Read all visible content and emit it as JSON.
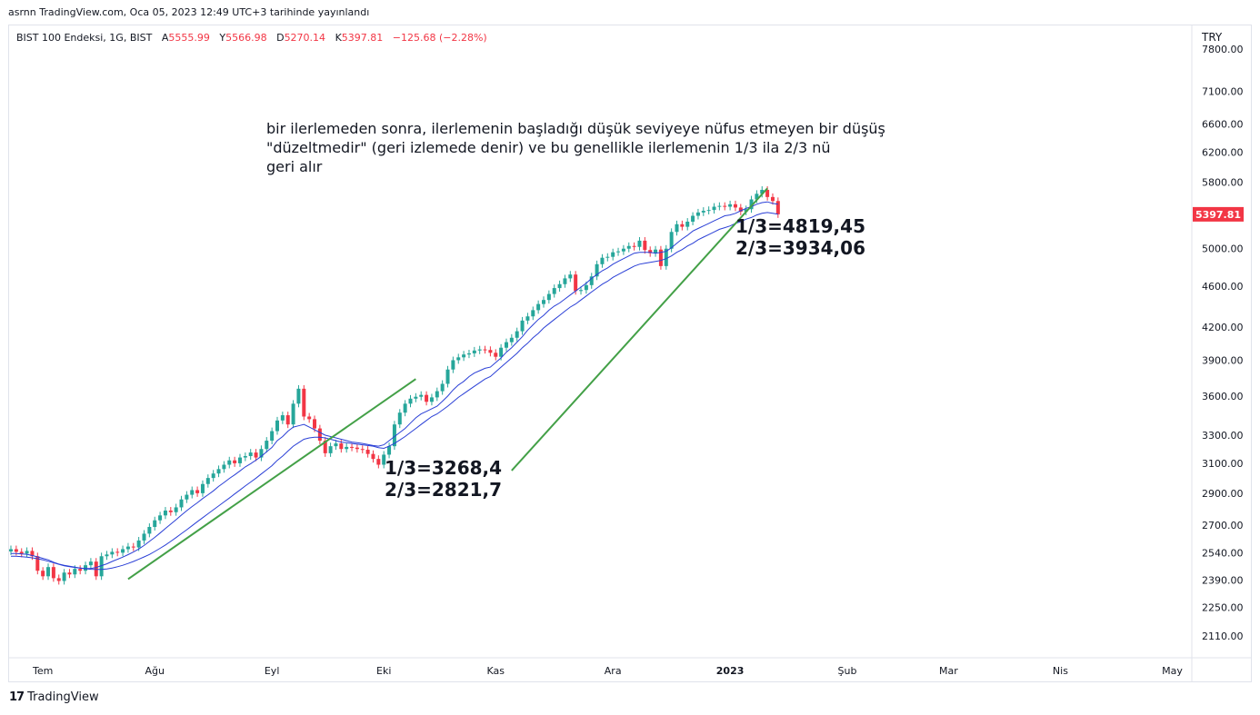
{
  "publish_line": "asrnn TradingView.com, Oca 05, 2023 12:49 UTC+3 tarihinde yayınlandı",
  "legend": {
    "symbol": "BIST 100 Endeksi, 1G, BIST",
    "open_label": "A",
    "open": "5555.99",
    "high_label": "Y",
    "high": "5566.98",
    "low_label": "D",
    "low": "5270.14",
    "close_label": "K",
    "close": "5397.81",
    "change": "−125.68 (−2.28%)"
  },
  "currency": "TRY",
  "footer_brand": "TradingView",
  "colors": {
    "up": "#26a69a",
    "down": "#f23645",
    "ma": "#2a3fd6",
    "trend": "#43a047",
    "price_tag": "#f23645"
  },
  "chart_data": {
    "type": "candlestick",
    "title": "BIST 100 Endeksi, 1G, BIST",
    "y_scale": "log",
    "ylim": [
      2050,
      7800
    ],
    "y_ticks": [
      "7800.00",
      "7100.00",
      "6600.00",
      "6200.00",
      "5800.00",
      "5000.00",
      "4600.00",
      "4200.00",
      "3900.00",
      "3600.00",
      "3300.00",
      "3100.00",
      "2900.00",
      "2700.00",
      "2540.00",
      "2390.00",
      "2250.00",
      "2110.00"
    ],
    "x_ticks": [
      {
        "label": "Tem",
        "i": 6
      },
      {
        "label": "Ağu",
        "i": 27
      },
      {
        "label": "Eyl",
        "i": 49
      },
      {
        "label": "Eki",
        "i": 70
      },
      {
        "label": "Kas",
        "i": 91
      },
      {
        "label": "Ara",
        "i": 113
      },
      {
        "label": "2023",
        "i": 135
      },
      {
        "label": "Şub",
        "i": 157
      },
      {
        "label": "Mar",
        "i": 176
      },
      {
        "label": "Nis",
        "i": 197
      },
      {
        "label": "May",
        "i": 218
      }
    ],
    "last_price": "5397.81",
    "closes": [
      2560,
      2545,
      2535,
      2550,
      2520,
      2440,
      2410,
      2460,
      2400,
      2385,
      2430,
      2420,
      2450,
      2440,
      2470,
      2490,
      2410,
      2520,
      2530,
      2545,
      2540,
      2560,
      2575,
      2570,
      2610,
      2650,
      2690,
      2730,
      2760,
      2790,
      2780,
      2810,
      2860,
      2890,
      2920,
      2900,
      2960,
      3000,
      3030,
      3060,
      3090,
      3120,
      3100,
      3140,
      3150,
      3175,
      3140,
      3200,
      3260,
      3330,
      3410,
      3450,
      3380,
      3540,
      3660,
      3440,
      3420,
      3350,
      3260,
      3170,
      3220,
      3240,
      3200,
      3215,
      3210,
      3200,
      3195,
      3165,
      3130,
      3090,
      3160,
      3220,
      3380,
      3470,
      3540,
      3580,
      3595,
      3610,
      3555,
      3590,
      3640,
      3700,
      3820,
      3900,
      3925,
      3950,
      3960,
      3985,
      3995,
      3990,
      3965,
      3930,
      4010,
      4060,
      4100,
      4160,
      4260,
      4300,
      4360,
      4420,
      4460,
      4520,
      4580,
      4620,
      4680,
      4720,
      4550,
      4560,
      4610,
      4700,
      4830,
      4900,
      4910,
      4960,
      4970,
      5000,
      5030,
      5020,
      5090,
      4985,
      4950,
      4990,
      4810,
      5000,
      5190,
      5280,
      5250,
      5310,
      5380,
      5420,
      5440,
      5450,
      5490,
      5500,
      5490,
      5520,
      5480,
      5430,
      5460,
      5580,
      5650,
      5700,
      5610,
      5560,
      5398
    ],
    "ma_fast": [
      2535,
      2535,
      2533,
      2531,
      2524,
      2517,
      2508,
      2500,
      2487,
      2477,
      2470,
      2465,
      2460,
      2455,
      2452,
      2452,
      2458,
      2468,
      2478,
      2491,
      2503,
      2515,
      2529,
      2544,
      2561,
      2581,
      2605,
      2628,
      2654,
      2680,
      2707,
      2734,
      2762,
      2789,
      2815,
      2839,
      2866,
      2890,
      2915,
      2944,
      2970,
      2997,
      3021,
      3048,
      3075,
      3097,
      3122,
      3148,
      3180,
      3211,
      3260,
      3290,
      3330,
      3360,
      3370,
      3380,
      3360,
      3340,
      3320,
      3300,
      3290,
      3280,
      3270,
      3260,
      3250,
      3245,
      3240,
      3233,
      3225,
      3220,
      3230,
      3260,
      3290,
      3320,
      3350,
      3390,
      3430,
      3460,
      3480,
      3500,
      3520,
      3560,
      3600,
      3650,
      3690,
      3720,
      3760,
      3790,
      3810,
      3830,
      3840,
      3880,
      3920,
      3970,
      4010,
      4060,
      4110,
      4170,
      4220,
      4270,
      4310,
      4360,
      4400,
      4430,
      4470,
      4510,
      4550,
      4590,
      4630,
      4680,
      4720,
      4760,
      4790,
      4830,
      4860,
      4890,
      4920,
      4950,
      4960,
      4960,
      4960,
      4950,
      4960,
      4970,
      5010,
      5060,
      5110,
      5150,
      5200,
      5230,
      5260,
      5290,
      5320,
      5350,
      5380,
      5390,
      5410,
      5440,
      5470,
      5490,
      5520,
      5540,
      5550,
      5530,
      5520
    ],
    "ma_slow": [
      2520,
      2520,
      2518,
      2515,
      2511,
      2506,
      2500,
      2492,
      2484,
      2475,
      2467,
      2462,
      2458,
      2455,
      2451,
      2448,
      2447,
      2447,
      2450,
      2455,
      2462,
      2470,
      2480,
      2491,
      2503,
      2516,
      2530,
      2547,
      2565,
      2584,
      2605,
      2627,
      2650,
      2673,
      2697,
      2722,
      2746,
      2770,
      2795,
      2819,
      2844,
      2869,
      2895,
      2921,
      2947,
      2973,
      2999,
      3027,
      3055,
      3083,
      3120,
      3150,
      3185,
      3220,
      3245,
      3270,
      3280,
      3285,
      3285,
      3280,
      3270,
      3260,
      3250,
      3245,
      3240,
      3235,
      3230,
      3225,
      3220,
      3210,
      3205,
      3220,
      3240,
      3265,
      3290,
      3320,
      3350,
      3380,
      3410,
      3440,
      3460,
      3490,
      3520,
      3555,
      3590,
      3620,
      3650,
      3680,
      3710,
      3740,
      3760,
      3800,
      3840,
      3880,
      3920,
      3960,
      4010,
      4050,
      4100,
      4140,
      4190,
      4230,
      4270,
      4310,
      4350,
      4390,
      4420,
      4460,
      4500,
      4540,
      4580,
      4620,
      4650,
      4690,
      4720,
      4750,
      4780,
      4810,
      4830,
      4840,
      4850,
      4860,
      4870,
      4890,
      4920,
      4960,
      4990,
      5030,
      5060,
      5100,
      5130,
      5160,
      5190,
      5220,
      5240,
      5260,
      5290,
      5310,
      5340,
      5360,
      5390,
      5410,
      5420,
      5410,
      5400
    ],
    "trend_lines": [
      {
        "from": {
          "i": 22,
          "y": 2395
        },
        "to": {
          "i": 76,
          "y": 3740
        }
      },
      {
        "from": {
          "i": 94,
          "y": 3050
        },
        "to": {
          "i": 142,
          "y": 5720
        }
      }
    ],
    "annotations": {
      "note_lines": [
        "bir ilerlemeden sonra, ilerlemenin başladığı düşük seviyeye nüfus etmeyen bir düşüş",
        "\"düzeltmedir\" (geri izlemede denir) ve bu genellikle ilerlemenin 1/3 ila 2/3 nü",
        "geri alır"
      ],
      "fib_upper": [
        "1/3=4819,45",
        "2/3=3934,06"
      ],
      "fib_lower": [
        "1/3=3268,4",
        "2/3=2821,7"
      ]
    }
  }
}
